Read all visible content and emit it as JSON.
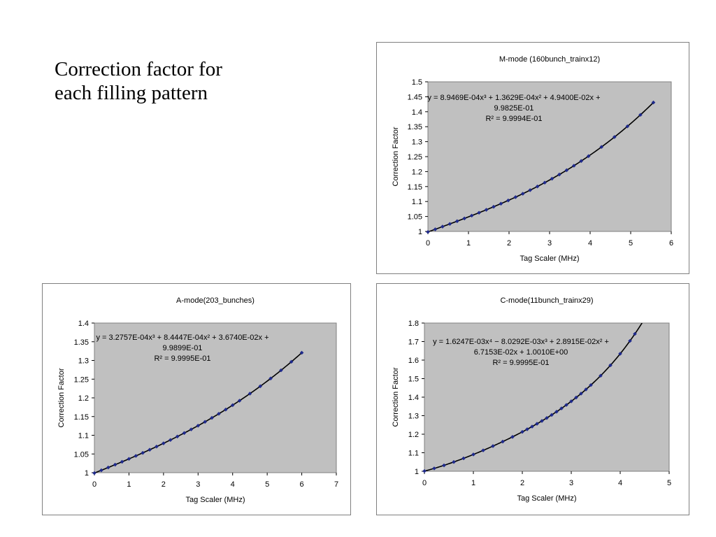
{
  "slide": {
    "title_line1": "Correction factor for",
    "title_line2": "each filling pattern"
  },
  "colors": {
    "plot_background": "#c0c0c0",
    "marker": "#1f2a8c",
    "fit_line": "#000000"
  },
  "chart_data": [
    {
      "id": "m",
      "type": "scatter",
      "title": "M-mode (160bunch_trainx12)",
      "xlabel": "Tag Scaler (MHz)",
      "ylabel": "Correction Factor",
      "xlim": [
        0,
        6
      ],
      "ylim": [
        1,
        1.5
      ],
      "xticks": [
        "0",
        "1",
        "2",
        "3",
        "4",
        "5",
        "6"
      ],
      "yticks": [
        "1",
        "1.05",
        "1.1",
        "1.15",
        "1.2",
        "1.25",
        "1.3",
        "1.35",
        "1.4",
        "1.45",
        "1.5"
      ],
      "grid": false,
      "equation": [
        "y = 8.9469E-04x³ + 1.3629E-04x² + 4.9400E-02x +",
        "9.9825E-01"
      ],
      "r2": "R² = 9.9994E-01",
      "coefficients": [
        0.99825,
        0.0494,
        0.00013629,
        0.00089469
      ],
      "x": [
        0,
        0.18,
        0.36,
        0.54,
        0.72,
        0.9,
        1.08,
        1.26,
        1.44,
        1.62,
        1.8,
        1.98,
        2.16,
        2.34,
        2.52,
        2.7,
        2.88,
        3.06,
        3.24,
        3.42,
        3.6,
        3.78,
        3.96,
        4.28,
        4.6,
        4.92,
        5.24,
        5.56
      ]
    },
    {
      "id": "a",
      "type": "scatter",
      "title": "A-mode(203_bunches)",
      "xlabel": "Tag Scaler (MHz)",
      "ylabel": "Correction Factor",
      "xlim": [
        0,
        7
      ],
      "ylim": [
        1,
        1.4
      ],
      "xticks": [
        "0",
        "1",
        "2",
        "3",
        "4",
        "5",
        "6",
        "7"
      ],
      "yticks": [
        "1",
        "1.05",
        "1.1",
        "1.15",
        "1.2",
        "1.25",
        "1.3",
        "1.35",
        "1.4"
      ],
      "grid": false,
      "equation": [
        "y = 3.2757E-04x³ + 8.4447E-04x² + 3.6740E-02x +",
        "9.9899E-01"
      ],
      "r2": "R² = 9.9995E-01",
      "coefficients": [
        0.99899,
        0.03674,
        0.00084447,
        0.00032757
      ],
      "x": [
        0,
        0.2,
        0.4,
        0.6,
        0.8,
        1.0,
        1.2,
        1.4,
        1.6,
        1.8,
        2.0,
        2.2,
        2.4,
        2.6,
        2.8,
        3.0,
        3.2,
        3.4,
        3.6,
        3.8,
        4.0,
        4.2,
        4.5,
        4.8,
        5.1,
        5.4,
        5.7,
        6.0
      ]
    },
    {
      "id": "c",
      "type": "scatter",
      "title": "C-mode(11bunch_trainx29)",
      "xlabel": "Tag Scaler (MHz)",
      "ylabel": "Correction Factor",
      "xlim": [
        0,
        5
      ],
      "ylim": [
        1,
        1.8
      ],
      "xticks": [
        "0",
        "1",
        "2",
        "3",
        "4",
        "5"
      ],
      "yticks": [
        "1",
        "1.1",
        "1.2",
        "1.3",
        "1.4",
        "1.5",
        "1.6",
        "1.7",
        "1.8"
      ],
      "grid": false,
      "equation": [
        "y = 1.6247E-03x⁴ − 8.0292E-03x³ + 2.8915E-02x² +",
        "6.7153E-02x + 1.0010E+00"
      ],
      "r2": "R² = 9.9995E-01",
      "coefficients": [
        1.001,
        0.067153,
        0.028915,
        -0.0080292,
        0.0016247
      ],
      "x": [
        0,
        0.2,
        0.4,
        0.6,
        0.8,
        1.0,
        1.2,
        1.4,
        1.6,
        1.8,
        2.0,
        2.1,
        2.2,
        2.3,
        2.4,
        2.5,
        2.6,
        2.7,
        2.8,
        2.9,
        3.0,
        3.1,
        3.2,
        3.3,
        3.4,
        3.6,
        3.8,
        4.0,
        4.2,
        4.3
      ]
    }
  ]
}
